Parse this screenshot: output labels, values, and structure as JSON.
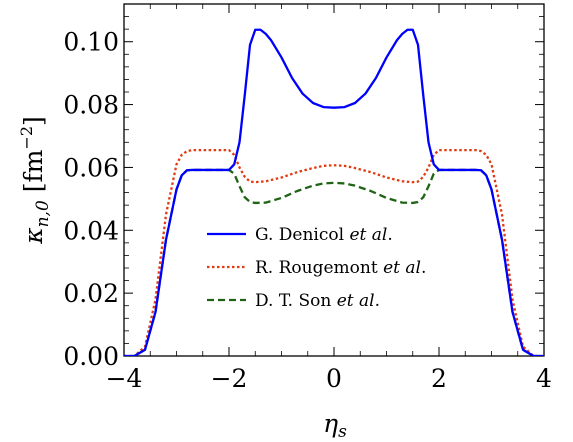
{
  "chart_data": {
    "type": "line",
    "xlabel": "η_s",
    "ylabel": "κ_{n,0} [fm^-2]",
    "xlim": [
      -4,
      4
    ],
    "ylim": [
      0,
      0.112
    ],
    "x_ticks": [
      "−4",
      "−2",
      "0",
      "2",
      "4"
    ],
    "y_ticks": [
      "0.00",
      "0.02",
      "0.04",
      "0.06",
      "0.08",
      "0.10"
    ],
    "x_tick_values": [
      -4,
      -2,
      0,
      2,
      4
    ],
    "y_tick_values": [
      0,
      0.02,
      0.04,
      0.06,
      0.08,
      0.1
    ],
    "legend_position": "center",
    "series": [
      {
        "name": "G. Denicol et al.",
        "legend_prefix": "G. Denicol ",
        "legend_italic": "et al",
        "color": "#0000ff",
        "dash": "solid",
        "x": [
          -4.5,
          -3.8,
          -3.6,
          -3.4,
          -3.2,
          -3.0,
          -2.9,
          -2.8,
          -2.7,
          -2.0,
          -1.9,
          -1.8,
          -1.7,
          -1.6,
          -1.5,
          -1.4,
          -1.3,
          -1.2,
          -1.0,
          -0.8,
          -0.6,
          -0.4,
          -0.2,
          0.0,
          0.2,
          0.4,
          0.6,
          0.8,
          1.0,
          1.2,
          1.3,
          1.4,
          1.5,
          1.6,
          1.7,
          1.8,
          1.9,
          2.0,
          2.7,
          2.8,
          2.9,
          3.0,
          3.2,
          3.4,
          3.6,
          3.8,
          4.5
        ],
        "y": [
          0,
          0,
          0.002,
          0.014,
          0.037,
          0.053,
          0.0575,
          0.0591,
          0.0592,
          0.0592,
          0.061,
          0.068,
          0.083,
          0.099,
          0.1038,
          0.1038,
          0.1025,
          0.1005,
          0.095,
          0.0885,
          0.0835,
          0.0805,
          0.0792,
          0.079,
          0.0792,
          0.0805,
          0.0835,
          0.0885,
          0.095,
          0.1005,
          0.1025,
          0.1038,
          0.1038,
          0.099,
          0.083,
          0.068,
          0.061,
          0.0592,
          0.0592,
          0.0591,
          0.0575,
          0.053,
          0.037,
          0.014,
          0.002,
          0,
          0
        ]
      },
      {
        "name": "R. Rougemont et al.",
        "legend_prefix": "R. Rougemont ",
        "legend_italic": "et al",
        "color": "#e03c14",
        "dash": "dotted",
        "x": [
          -4.5,
          -3.8,
          -3.6,
          -3.4,
          -3.2,
          -3.0,
          -2.9,
          -2.8,
          -2.7,
          -2.0,
          -1.9,
          -1.8,
          -1.7,
          -1.6,
          -1.5,
          -1.3,
          -1.0,
          -0.7,
          -0.4,
          -0.2,
          0.0,
          0.2,
          0.4,
          0.7,
          1.0,
          1.3,
          1.5,
          1.6,
          1.7,
          1.8,
          1.9,
          2.0,
          2.7,
          2.8,
          2.9,
          3.0,
          3.2,
          3.4,
          3.6,
          3.8,
          4.5
        ],
        "y": [
          0,
          0,
          0.003,
          0.018,
          0.045,
          0.061,
          0.064,
          0.0652,
          0.0655,
          0.0655,
          0.064,
          0.06,
          0.057,
          0.0555,
          0.0553,
          0.0556,
          0.0568,
          0.0585,
          0.0598,
          0.0605,
          0.0607,
          0.0605,
          0.0598,
          0.0585,
          0.0568,
          0.0556,
          0.0553,
          0.0555,
          0.057,
          0.06,
          0.064,
          0.0655,
          0.0655,
          0.0652,
          0.064,
          0.061,
          0.045,
          0.018,
          0.003,
          0,
          0
        ]
      },
      {
        "name": "D. T. Son et al.",
        "legend_prefix": "D. T. Son ",
        "legend_italic": "et al",
        "color": "#1e6414",
        "dash": "dashed",
        "x": [
          -4.5,
          -3.8,
          -3.6,
          -3.4,
          -3.2,
          -3.0,
          -2.9,
          -2.8,
          -2.7,
          -2.0,
          -1.9,
          -1.8,
          -1.7,
          -1.6,
          -1.5,
          -1.3,
          -1.0,
          -0.7,
          -0.4,
          -0.2,
          0.0,
          0.2,
          0.4,
          0.7,
          1.0,
          1.3,
          1.5,
          1.6,
          1.7,
          1.8,
          1.9,
          2.0,
          2.7,
          2.8,
          2.9,
          3.0,
          3.2,
          3.4,
          3.6,
          3.8,
          4.5
        ],
        "y": [
          0,
          0,
          0.002,
          0.014,
          0.037,
          0.053,
          0.0575,
          0.0591,
          0.0592,
          0.0592,
          0.058,
          0.054,
          0.0505,
          0.049,
          0.0487,
          0.0488,
          0.0503,
          0.0525,
          0.0542,
          0.0549,
          0.0551,
          0.0549,
          0.0542,
          0.0525,
          0.0503,
          0.0488,
          0.0487,
          0.049,
          0.0505,
          0.054,
          0.058,
          0.0592,
          0.0592,
          0.0591,
          0.0575,
          0.053,
          0.037,
          0.014,
          0.002,
          0,
          0
        ]
      }
    ]
  }
}
